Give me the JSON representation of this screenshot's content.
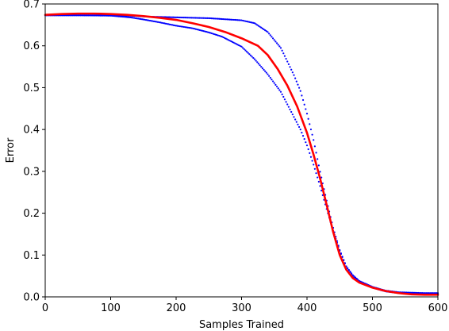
{
  "chart_data": {
    "type": "scatter",
    "title": "",
    "xlabel": "Samples Trained",
    "ylabel": "Error",
    "xlim": [
      0,
      600
    ],
    "ylim": [
      0,
      0.7
    ],
    "xticks": [
      "0",
      "100",
      "200",
      "300",
      "400",
      "500",
      "600"
    ],
    "yticks": [
      "0.0",
      "0.1",
      "0.2",
      "0.3",
      "0.4",
      "0.5",
      "0.6",
      "0.7"
    ],
    "grid": false,
    "legend": "none",
    "colors": {
      "points": "#0000ff",
      "curve": "#ff0000"
    },
    "series": [
      {
        "kind": "points",
        "x": [
          0,
          50,
          100,
          130,
          150,
          175,
          200,
          225,
          250,
          270,
          300,
          320,
          340,
          360,
          380,
          390,
          400,
          410,
          420,
          430,
          440,
          450,
          460,
          470,
          480,
          500,
          520,
          540,
          560,
          580,
          600
        ],
        "y": [
          0.673,
          0.673,
          0.673,
          0.672,
          0.67,
          0.669,
          0.668,
          0.667,
          0.666,
          0.664,
          0.661,
          0.654,
          0.633,
          0.595,
          0.53,
          0.492,
          0.438,
          0.375,
          0.299,
          0.23,
          0.165,
          0.112,
          0.073,
          0.052,
          0.038,
          0.024,
          0.015,
          0.011,
          0.01,
          0.009,
          0.009
        ]
      },
      {
        "kind": "points",
        "x": [
          0,
          50,
          100,
          130,
          150,
          175,
          200,
          225,
          250,
          270,
          300,
          320,
          340,
          360,
          380,
          390,
          400,
          410,
          420,
          430,
          440,
          450,
          460,
          470,
          480,
          500,
          520,
          540,
          560,
          580,
          600
        ],
        "y": [
          0.673,
          0.673,
          0.672,
          0.668,
          0.663,
          0.656,
          0.648,
          0.642,
          0.632,
          0.622,
          0.598,
          0.568,
          0.532,
          0.49,
          0.43,
          0.4,
          0.362,
          0.316,
          0.265,
          0.21,
          0.158,
          0.11,
          0.072,
          0.05,
          0.036,
          0.022,
          0.013,
          0.009,
          0.007,
          0.006,
          0.006
        ]
      },
      {
        "kind": "line",
        "x": [
          0,
          25,
          50,
          75,
          100,
          125,
          150,
          175,
          200,
          225,
          250,
          275,
          300,
          325,
          340,
          355,
          370,
          385,
          400,
          410,
          420,
          430,
          440,
          450,
          460,
          470,
          480,
          500,
          520,
          540,
          560,
          580,
          600
        ],
        "y": [
          0.674,
          0.676,
          0.677,
          0.677,
          0.676,
          0.674,
          0.671,
          0.667,
          0.662,
          0.654,
          0.645,
          0.633,
          0.618,
          0.6,
          0.578,
          0.545,
          0.505,
          0.455,
          0.392,
          0.34,
          0.283,
          0.22,
          0.155,
          0.1,
          0.065,
          0.045,
          0.034,
          0.022,
          0.014,
          0.009,
          0.006,
          0.005,
          0.005
        ]
      }
    ]
  }
}
